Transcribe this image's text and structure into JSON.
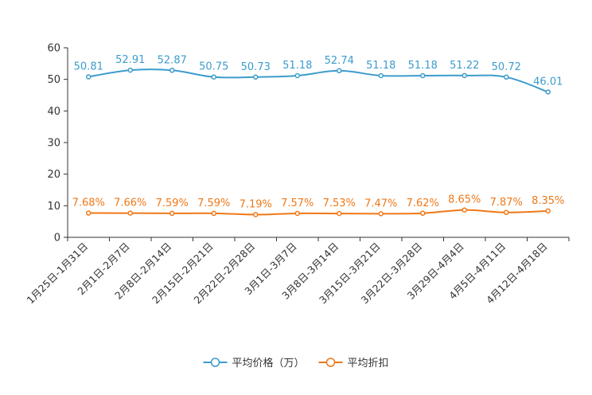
{
  "chart_data": {
    "type": "line",
    "title": "",
    "xlabel": "",
    "ylabel": "",
    "ylim": [
      0,
      60
    ],
    "yticks": [
      0,
      10,
      20,
      30,
      40,
      50,
      60
    ],
    "grid": false,
    "legend_position": "bottom-center",
    "categories": [
      "1月25日-1月31日",
      "2月1日-2月7日",
      "2月8日-2月14日",
      "2月15日-2月21日",
      "2月22日-2月28日",
      "3月1日-3月7日",
      "3月8日-3月14日",
      "3月15日-3月21日",
      "3月22日-3月28日",
      "3月29日-4月4日",
      "4月5日-4月11日",
      "4月12日-4月18日"
    ],
    "series": [
      {
        "name": "平均价格（万）",
        "color": "#3c9ccc",
        "values": [
          50.81,
          52.91,
          52.87,
          50.75,
          50.73,
          51.18,
          52.74,
          51.18,
          51.18,
          51.22,
          50.72,
          46.01
        ],
        "labels": [
          "50.81",
          "52.91",
          "52.87",
          "50.75",
          "50.73",
          "51.18",
          "52.74",
          "51.18",
          "51.18",
          "51.22",
          "50.72",
          "46.01"
        ]
      },
      {
        "name": "平均折扣",
        "color": "#f07818",
        "values": [
          7.68,
          7.66,
          7.59,
          7.59,
          7.19,
          7.57,
          7.53,
          7.47,
          7.62,
          8.65,
          7.87,
          8.35
        ],
        "labels": [
          "7.68%",
          "7.66%",
          "7.59%",
          "7.59%",
          "7.19%",
          "7.57%",
          "7.53%",
          "7.47%",
          "7.62%",
          "8.65%",
          "7.87%",
          "8.35%"
        ]
      }
    ]
  }
}
